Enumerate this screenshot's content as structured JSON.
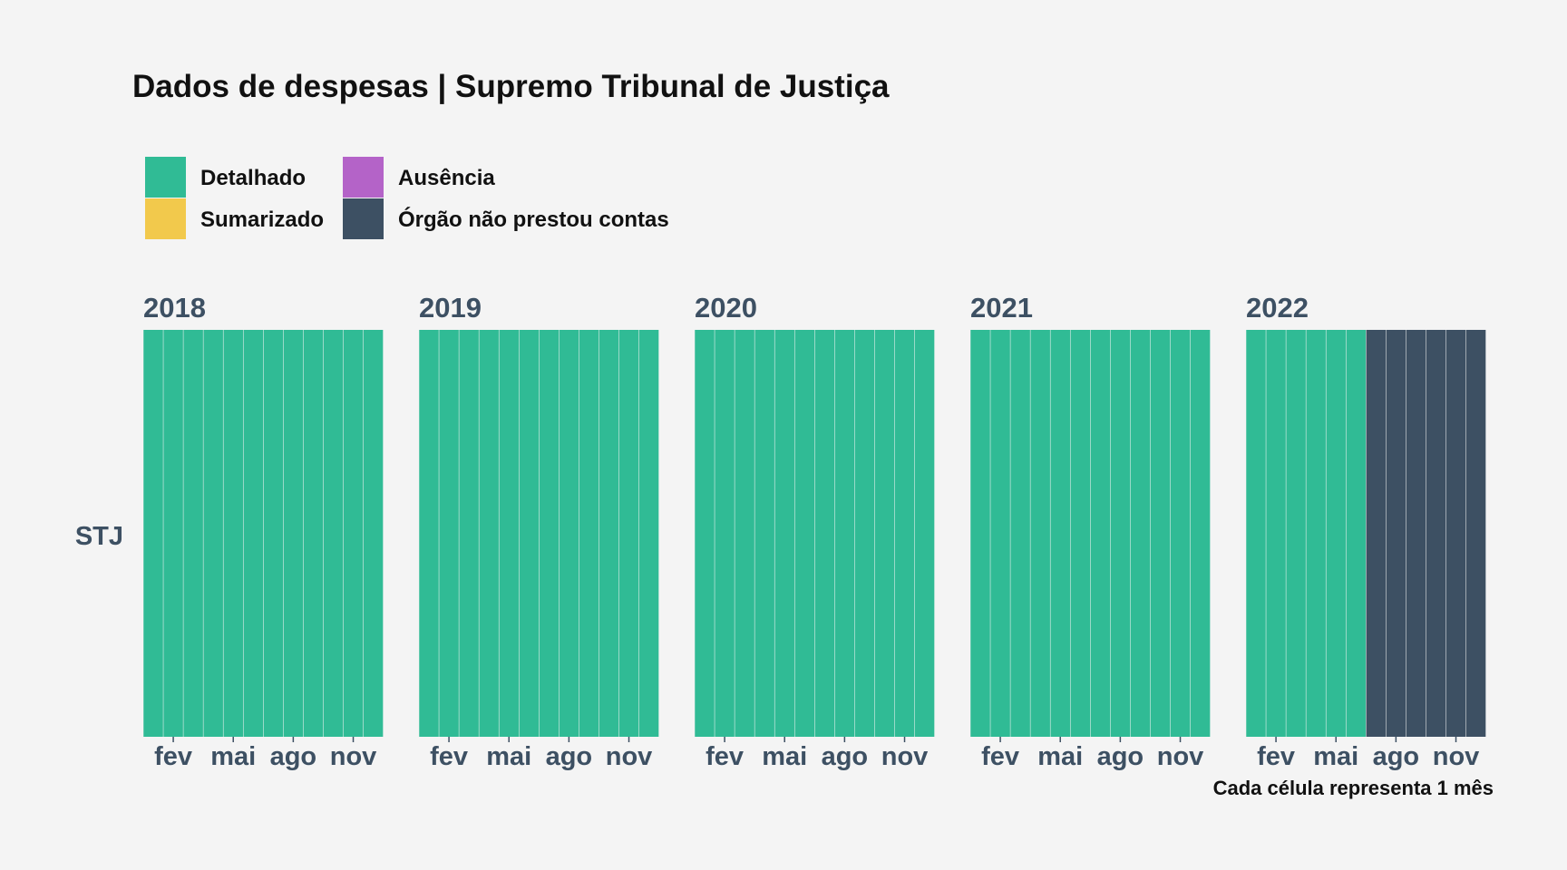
{
  "chart_data": {
    "type": "heatmap",
    "title": "Dados de despesas | Supremo Tribunal de Justiça",
    "caption": "Cada célula representa 1 mês",
    "row_label": "STJ",
    "legend": {
      "position": "top-left",
      "items": [
        {
          "label": "Detalhado",
          "color": "#30bb95"
        },
        {
          "label": "Ausência",
          "color": "#b463c8"
        },
        {
          "label": "Sumarizado",
          "color": "#f2c94c"
        },
        {
          "label": "Órgão não prestou contas",
          "color": "#3d5063"
        }
      ]
    },
    "x_tick_labels": [
      "fev",
      "mai",
      "ago",
      "nov"
    ],
    "x_tick_months": [
      2,
      5,
      8,
      11
    ],
    "panels": [
      {
        "year": "2018",
        "months": [
          "Detalhado",
          "Detalhado",
          "Detalhado",
          "Detalhado",
          "Detalhado",
          "Detalhado",
          "Detalhado",
          "Detalhado",
          "Detalhado",
          "Detalhado",
          "Detalhado",
          "Detalhado"
        ]
      },
      {
        "year": "2019",
        "months": [
          "Detalhado",
          "Detalhado",
          "Detalhado",
          "Detalhado",
          "Detalhado",
          "Detalhado",
          "Detalhado",
          "Detalhado",
          "Detalhado",
          "Detalhado",
          "Detalhado",
          "Detalhado"
        ]
      },
      {
        "year": "2020",
        "months": [
          "Detalhado",
          "Detalhado",
          "Detalhado",
          "Detalhado",
          "Detalhado",
          "Detalhado",
          "Detalhado",
          "Detalhado",
          "Detalhado",
          "Detalhado",
          "Detalhado",
          "Detalhado"
        ]
      },
      {
        "year": "2021",
        "months": [
          "Detalhado",
          "Detalhado",
          "Detalhado",
          "Detalhado",
          "Detalhado",
          "Detalhado",
          "Detalhado",
          "Detalhado",
          "Detalhado",
          "Detalhado",
          "Detalhado",
          "Detalhado"
        ]
      },
      {
        "year": "2022",
        "months": [
          "Detalhado",
          "Detalhado",
          "Detalhado",
          "Detalhado",
          "Detalhado",
          "Detalhado",
          "Órgão não prestou contas",
          "Órgão não prestou contas",
          "Órgão não prestou contas",
          "Órgão não prestou contas",
          "Órgão não prestou contas",
          "Órgão não prestou contas"
        ]
      }
    ]
  }
}
